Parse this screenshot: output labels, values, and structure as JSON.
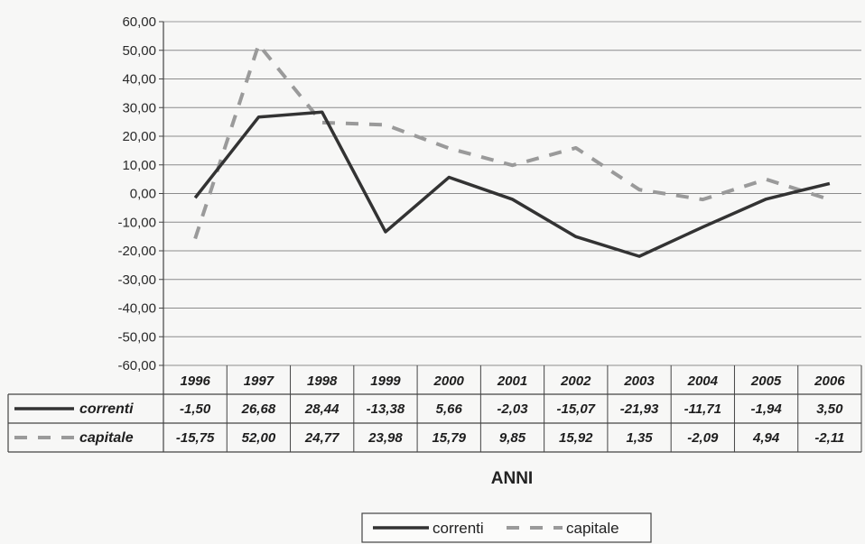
{
  "chart_data": {
    "type": "line",
    "categories": [
      "1996",
      "1997",
      "1998",
      "1999",
      "2000",
      "2001",
      "2002",
      "2003",
      "2004",
      "2005",
      "2006"
    ],
    "series": [
      {
        "name": "correnti",
        "values": [
          -1.5,
          26.68,
          28.44,
          -13.38,
          5.66,
          -2.03,
          -15.07,
          -21.93,
          -11.71,
          -1.94,
          3.5
        ],
        "color": "#333333",
        "style": "solid"
      },
      {
        "name": "capitale",
        "values": [
          -15.75,
          52.0,
          24.77,
          23.98,
          15.79,
          9.85,
          15.92,
          1.35,
          -2.09,
          4.94,
          -2.11
        ],
        "color": "#9a9a9a",
        "style": "dashed"
      }
    ],
    "yticks": [
      "60,00",
      "50,00",
      "40,00",
      "30,00",
      "20,00",
      "10,00",
      "0,00",
      "-10,00",
      "-20,00",
      "-30,00",
      "-40,00",
      "-50,00",
      "-60,00"
    ],
    "table_rows": [
      {
        "label": "correnti",
        "cells": [
          "-1,50",
          "26,68",
          "28,44",
          "-13,38",
          "5,66",
          "-2,03",
          "-15,07",
          "-21,93",
          "-11,71",
          "-1,94",
          "3,50"
        ]
      },
      {
        "label": "capitale",
        "cells": [
          "-15,75",
          "52,00",
          "24,77",
          "23,98",
          "15,79",
          "9,85",
          "15,92",
          "1,35",
          "-2,09",
          "4,94",
          "-2,11"
        ]
      }
    ],
    "xlabel": "ANNI",
    "ylim": [
      -60,
      60
    ],
    "grid": true,
    "data_table": true,
    "legend_position": "bottom"
  }
}
